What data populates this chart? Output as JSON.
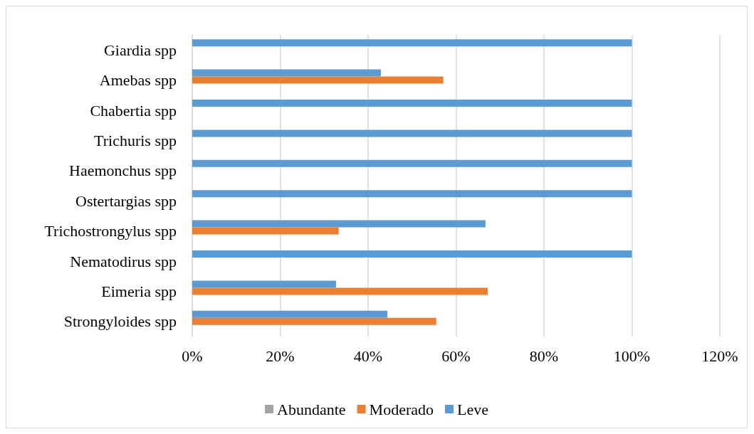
{
  "chart_data": {
    "type": "bar",
    "orientation": "horizontal",
    "categories": [
      "Giardia spp",
      "Amebas spp",
      "Chabertia spp",
      "Trichuris spp",
      "Haemonchus spp",
      "Ostertargias spp",
      "Trichostrongylus spp",
      "Nematodirus spp",
      "Eimeria spp",
      "Strongyloides spp"
    ],
    "series": [
      {
        "name": "Abundante",
        "color": "#a5a5a5",
        "values": [
          0,
          0,
          0,
          0,
          0,
          0,
          0,
          0,
          0,
          0
        ]
      },
      {
        "name": "Moderado",
        "color": "#ed7d31",
        "values": [
          0,
          57.1,
          0,
          0,
          0,
          0,
          33.3,
          0,
          67.2,
          55.5
        ]
      },
      {
        "name": "Leve",
        "color": "#5b9bd5",
        "values": [
          100,
          42.9,
          100,
          100,
          100,
          100,
          66.7,
          100,
          32.7,
          44.4
        ]
      }
    ],
    "xlim": [
      0,
      120
    ],
    "xticks": [
      {
        "value": 0,
        "label": "0%"
      },
      {
        "value": 20,
        "label": "20%"
      },
      {
        "value": 40,
        "label": "40%"
      },
      {
        "value": 60,
        "label": "60%"
      },
      {
        "value": 80,
        "label": "80%"
      },
      {
        "value": 100,
        "label": "100%"
      },
      {
        "value": 120,
        "label": "120%"
      }
    ],
    "grid": "x",
    "legend": "bottom"
  }
}
